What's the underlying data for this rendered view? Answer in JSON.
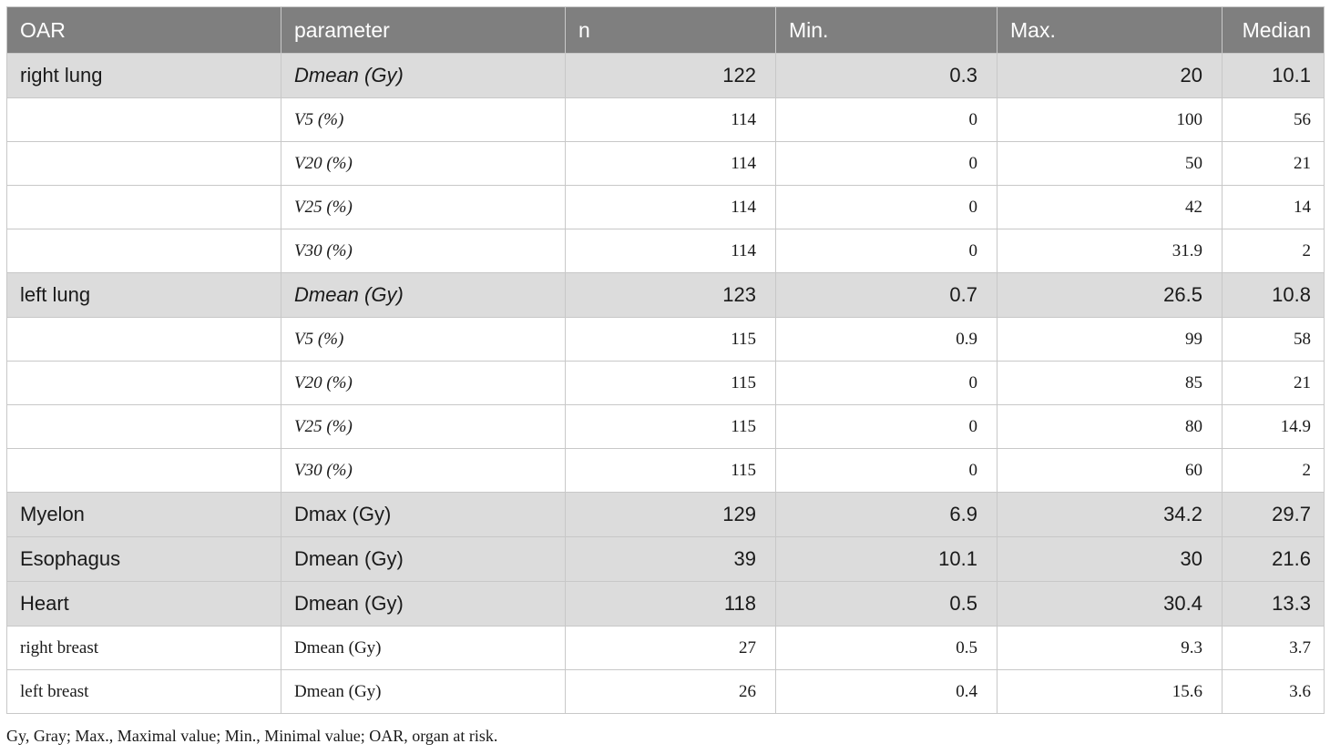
{
  "table": {
    "headers": [
      "OAR",
      "parameter",
      "n",
      "Min.",
      "Max.",
      "Median"
    ],
    "rows": [
      {
        "oar": "right lung",
        "parameter": "Dmean (Gy)",
        "n": "122",
        "min": "0.3",
        "max": "20",
        "median": "10.1"
      },
      {
        "oar": "",
        "parameter": "V5 (%)",
        "n": "114",
        "min": "0",
        "max": "100",
        "median": "56"
      },
      {
        "oar": "",
        "parameter": "V20 (%)",
        "n": "114",
        "min": "0",
        "max": "50",
        "median": "21"
      },
      {
        "oar": "",
        "parameter": "V25 (%)",
        "n": "114",
        "min": "0",
        "max": "42",
        "median": "14"
      },
      {
        "oar": "",
        "parameter": "V30 (%)",
        "n": "114",
        "min": "0",
        "max": "31.9",
        "median": "2"
      },
      {
        "oar": "left lung",
        "parameter": "Dmean (Gy)",
        "n": "123",
        "min": "0.7",
        "max": "26.5",
        "median": "10.8"
      },
      {
        "oar": "",
        "parameter": "V5 (%)",
        "n": "115",
        "min": "0.9",
        "max": "99",
        "median": "58"
      },
      {
        "oar": "",
        "parameter": "V20 (%)",
        "n": "115",
        "min": "0",
        "max": "85",
        "median": "21"
      },
      {
        "oar": "",
        "parameter": "V25 (%)",
        "n": "115",
        "min": "0",
        "max": "80",
        "median": "14.9"
      },
      {
        "oar": "",
        "parameter": "V30 (%)",
        "n": "115",
        "min": "0",
        "max": "60",
        "median": "2"
      },
      {
        "oar": "Myelon",
        "parameter": "Dmax (Gy)",
        "n": "129",
        "min": "6.9",
        "max": "34.2",
        "median": "29.7"
      },
      {
        "oar": "Esophagus",
        "parameter": "Dmean (Gy)",
        "n": "39",
        "min": "10.1",
        "max": "30",
        "median": "21.6"
      },
      {
        "oar": "Heart",
        "parameter": "Dmean (Gy)",
        "n": "118",
        "min": "0.5",
        "max": "30.4",
        "median": "13.3"
      },
      {
        "oar": "right breast",
        "parameter": "Dmean (Gy)",
        "n": "27",
        "min": "0.5",
        "max": "9.3",
        "median": "3.7"
      },
      {
        "oar": "left breast",
        "parameter": "Dmean (Gy)",
        "n": "26",
        "min": "0.4",
        "max": "15.6",
        "median": "3.6"
      }
    ]
  },
  "footnote": "Gy, Gray; Max., Maximal value; Min., Minimal value; OAR, organ at risk.",
  "colors": {
    "header_bg": "#7f7f7f",
    "main_row_bg": "#dcdcdc",
    "sub_row_bg": "#ffffff",
    "border": "#c8c8c8"
  }
}
